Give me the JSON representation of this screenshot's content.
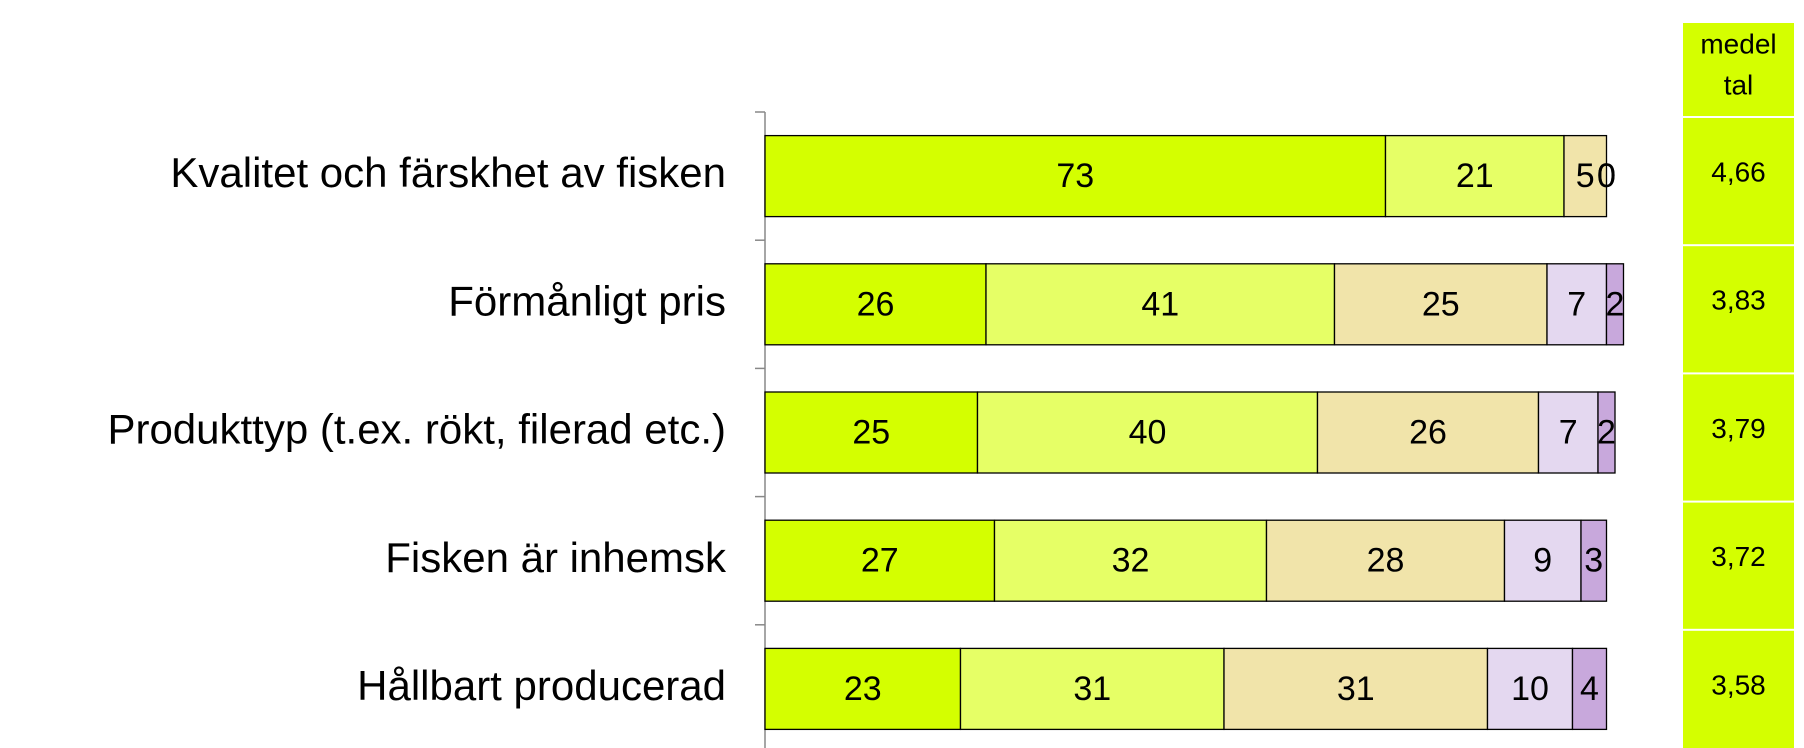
{
  "chart_data": {
    "type": "stacked-barh",
    "categories": [
      "Kvalitet och färskhet av fisken",
      "Förmånligt pris",
      "Produkttyp (t.ex. rökt, filerad etc.)",
      "Fisken är inhemsk",
      "Hållbart producerad"
    ],
    "series": [
      {
        "color": "#d4ff00",
        "values": [
          73,
          26,
          25,
          27,
          23
        ]
      },
      {
        "color": "#e6ff66",
        "values": [
          21,
          41,
          40,
          32,
          31
        ]
      },
      {
        "color": "#f1e4aa",
        "values": [
          5,
          25,
          26,
          28,
          31
        ]
      },
      {
        "color": "#e4d8f0",
        "values": [
          0,
          7,
          7,
          9,
          10
        ]
      },
      {
        "color": "#c8a8dc",
        "values": [
          0,
          2,
          2,
          3,
          4
        ]
      }
    ],
    "means": {
      "title_lines": [
        "medel",
        "tal"
      ],
      "color": "#d4ff00",
      "values": [
        4.66,
        3.83,
        3.79,
        3.72,
        3.58
      ],
      "value_labels": [
        "4,66",
        "3,83",
        "3,79",
        "3,72",
        "3,58"
      ]
    }
  }
}
